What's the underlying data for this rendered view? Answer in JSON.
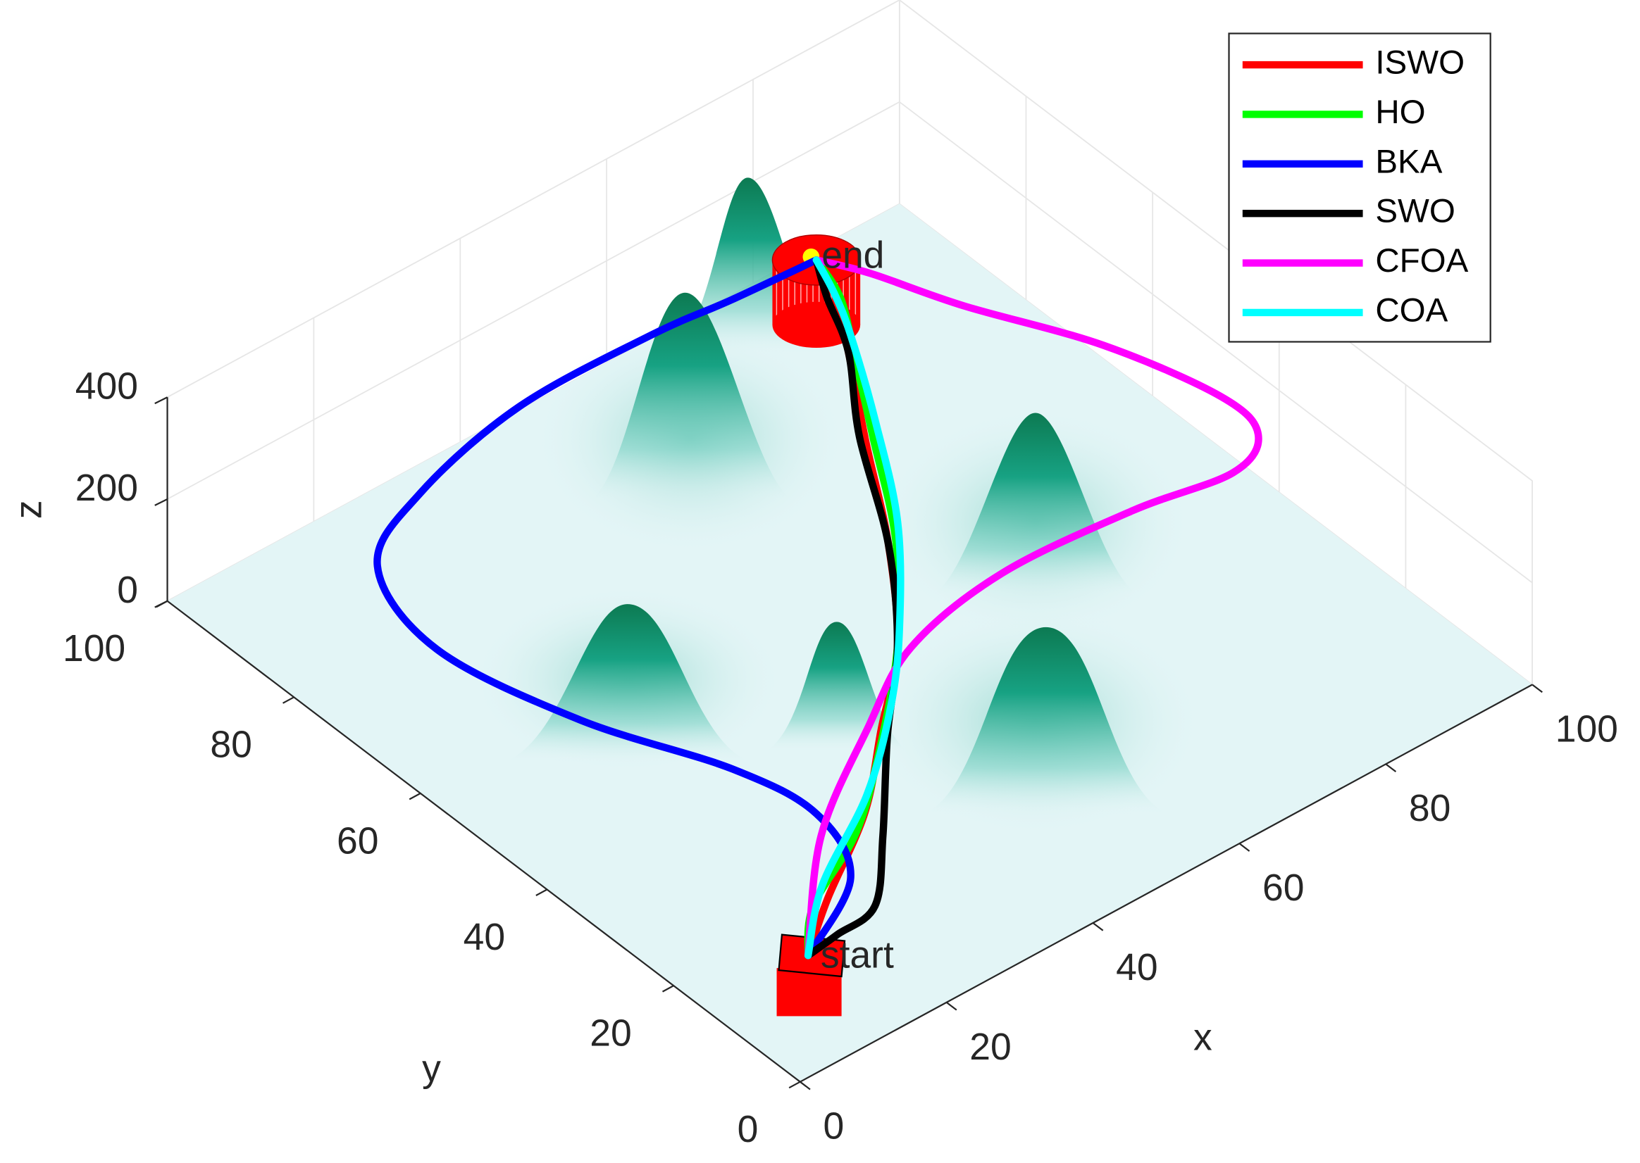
{
  "chart_data": {
    "type": "line3d",
    "xlabel": "x",
    "ylabel": "y",
    "zlabel": "z",
    "xlim": [
      0,
      100
    ],
    "xticks": [
      0,
      20,
      40,
      60,
      80,
      100
    ],
    "ylim": [
      0,
      100
    ],
    "yticks": [
      0,
      20,
      40,
      60,
      80,
      100
    ],
    "zlim": [
      0,
      400
    ],
    "zticks": [
      0,
      200,
      400
    ],
    "grid": true,
    "legend": "northeast",
    "annotations": [
      {
        "text": "start"
      },
      {
        "text": "end"
      }
    ],
    "series": [
      {
        "name": "ISWO",
        "color": "#ff0000",
        "x": [
          8,
          15,
          27,
          37,
          47,
          57,
          66,
          74,
          79,
          80
        ],
        "y": [
          8,
          13,
          21,
          30,
          39,
          52,
          66,
          78,
          86,
          90
        ],
        "z": [
          110,
          120,
          120,
          120,
          120,
          120,
          120,
          120,
          120,
          140
        ]
      },
      {
        "name": "HO",
        "color": "#00ff00",
        "x": [
          8,
          13,
          24,
          34,
          47,
          58,
          67,
          74,
          79,
          80
        ],
        "y": [
          8,
          13,
          19,
          27,
          39,
          52,
          66,
          77,
          85,
          90
        ],
        "z": [
          110,
          120,
          120,
          120,
          120,
          120,
          120,
          120,
          120,
          140
        ]
      },
      {
        "name": "BKA",
        "color": "#0000ff",
        "x": [
          8,
          19,
          23,
          21,
          14,
          10,
          14,
          25,
          42,
          60,
          70,
          80
        ],
        "y": [
          8,
          14,
          24,
          35,
          51,
          69,
          83,
          89,
          93,
          93,
          92,
          90
        ],
        "z": [
          110,
          120,
          120,
          120,
          120,
          120,
          120,
          120,
          120,
          120,
          120,
          140
        ]
      },
      {
        "name": "SWO",
        "color": "#000000",
        "x": [
          8,
          12,
          18,
          26,
          37,
          47,
          57,
          66,
          74,
          78,
          80
        ],
        "y": [
          8,
          8,
          9,
          17,
          29,
          39,
          52,
          67,
          78,
          86,
          90
        ],
        "z": [
          110,
          120,
          120,
          120,
          120,
          120,
          120,
          120,
          120,
          120,
          140
        ]
      },
      {
        "name": "CFOA",
        "color": "#ff00ff",
        "x": [
          8,
          21,
          36,
          48,
          63,
          80,
          92,
          98,
          99,
          95,
          88,
          84,
          80
        ],
        "y": [
          8,
          21,
          31,
          38,
          41,
          40,
          38,
          41,
          48,
          62,
          76,
          86,
          90
        ],
        "z": [
          110,
          120,
          120,
          120,
          120,
          120,
          120,
          120,
          120,
          120,
          120,
          120,
          140
        ]
      },
      {
        "name": "COA",
        "color": "#00ffff",
        "x": [
          8,
          16,
          29,
          40,
          49,
          60,
          69,
          76,
          79,
          80
        ],
        "y": [
          8,
          15,
          23,
          32,
          41,
          54,
          68,
          80,
          86,
          90
        ],
        "z": [
          110,
          120,
          120,
          120,
          120,
          120,
          120,
          120,
          120,
          140
        ]
      }
    ]
  }
}
